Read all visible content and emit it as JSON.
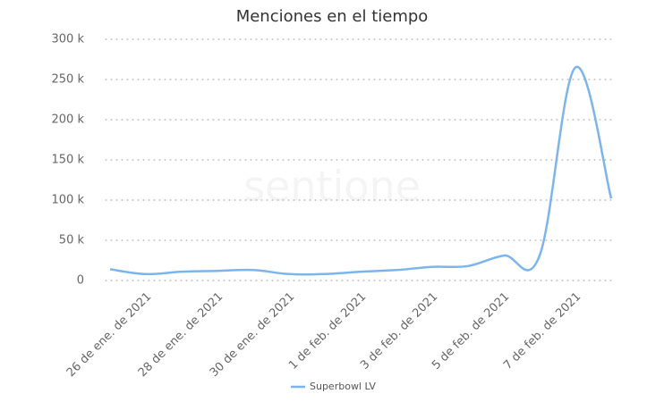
{
  "chart_data": {
    "type": "line",
    "title": "Menciones en el tiempo",
    "watermark": "sentione",
    "categories": [
      null,
      "26 de ene. de 2021",
      null,
      "28 de ene. de 2021",
      null,
      "30 de ene. de 2021",
      null,
      "1 de feb. de 2021",
      null,
      "3 de feb. de 2021",
      null,
      "5 de feb. de 2021",
      null,
      "7 de feb. de 2021",
      null
    ],
    "series": [
      {
        "name": "Superbowl LV",
        "color": "#7cb5ec",
        "values": [
          14000,
          8000,
          11000,
          12000,
          13000,
          8000,
          8000,
          11000,
          13000,
          17000,
          18000,
          31000,
          31000,
          265000,
          102000
        ]
      }
    ],
    "ylim": [
      0,
      300000
    ],
    "yticks": [
      {
        "value": 0,
        "label": "0"
      },
      {
        "value": 50000,
        "label": "50 k"
      },
      {
        "value": 100000,
        "label": "100 k"
      },
      {
        "value": 150000,
        "label": "150 k"
      },
      {
        "value": 200000,
        "label": "200 k"
      },
      {
        "value": 250000,
        "label": "250 k"
      },
      {
        "value": 300000,
        "label": "300 k"
      }
    ],
    "grid": true,
    "legend": "bottom"
  }
}
